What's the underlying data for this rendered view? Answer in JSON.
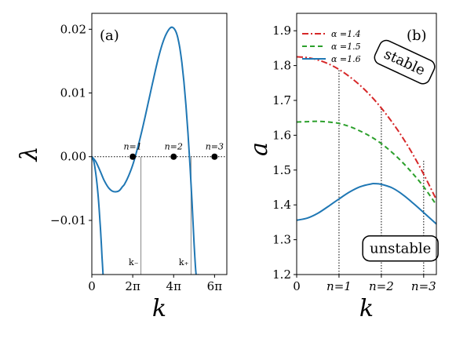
{
  "chart_data": [
    {
      "panel": "(a)",
      "type": "line",
      "xlabel": "k",
      "ylabel": "λ",
      "xlim": [
        0,
        6.6
      ],
      "ylim": [
        -0.0185,
        0.0225
      ],
      "x_tick_labels": [
        "0",
        "2π",
        "4π",
        "6π"
      ],
      "x_ticks": [
        0,
        2,
        4,
        6
      ],
      "y_tick_labels": [
        "−0.01",
        "0.00",
        "0.01",
        "0.02"
      ],
      "y_ticks": [
        -0.01,
        0.0,
        0.01,
        0.02
      ],
      "x_unit": "π",
      "grid": false,
      "color": "#1f77b4",
      "series": [
        {
          "x": [
            0,
            0.2,
            0.4,
            0.6,
            0.8,
            1.0,
            1.2,
            1.35,
            1.5,
            1.6,
            1.8,
            2.0,
            2.2,
            2.4,
            2.6,
            2.8,
            3.0,
            3.2,
            3.4,
            3.6,
            3.8,
            3.95,
            4.1,
            4.2,
            4.3,
            4.4,
            4.5,
            4.6,
            4.7,
            4.8,
            4.9,
            5.0,
            5.1,
            5.2
          ],
          "y": [
            0.0,
            -0.0008,
            -0.0022,
            -0.0037,
            -0.0048,
            -0.0054,
            -0.0055,
            -0.0053,
            -0.0047,
            -0.0043,
            -0.003,
            -0.0013,
            0.0009,
            0.0034,
            0.0062,
            0.0091,
            0.012,
            0.0148,
            0.0172,
            0.019,
            0.0201,
            0.0203,
            0.0197,
            0.0187,
            0.0171,
            0.0148,
            0.0118,
            0.0081,
            0.0037,
            -0.0014,
            -0.0072,
            -0.0137,
            -0.0185,
            -0.0185
          ]
        },
        {
          "x": [
            0,
            0.1,
            0.2,
            0.3,
            0.4,
            0.45,
            0.5,
            0.55
          ],
          "y": [
            0.0,
            -0.0008,
            -0.0028,
            -0.0058,
            -0.0102,
            -0.0128,
            -0.0158,
            -0.0185
          ]
        }
      ],
      "reference_lines": [
        {
          "type": "horizontal",
          "y": 0.0,
          "style": "dotted"
        },
        {
          "type": "vertical",
          "x": 2.4,
          "label": "k₋",
          "style": "solid-gray"
        },
        {
          "type": "vertical",
          "x": 4.85,
          "label": "k₊",
          "style": "solid-gray"
        }
      ],
      "points": [
        {
          "x": 2,
          "y": 0.0,
          "label": "n=1"
        },
        {
          "x": 4,
          "y": 0.0,
          "label": "n=2"
        },
        {
          "x": 6,
          "y": 0.0,
          "label": "n=3"
        }
      ]
    },
    {
      "panel": "(b)",
      "type": "line",
      "xlabel": "k",
      "ylabel": "a",
      "xlim": [
        0,
        3.3
      ],
      "ylim": [
        1.2,
        1.95
      ],
      "x_tick_labels": [
        "0",
        "n=1",
        "n=2",
        "n=3"
      ],
      "x_ticks": [
        0,
        1,
        2,
        3
      ],
      "y_tick_labels": [
        "1.2",
        "1.3",
        "1.4",
        "1.5",
        "1.6",
        "1.7",
        "1.8",
        "1.9"
      ],
      "y_ticks": [
        1.2,
        1.3,
        1.4,
        1.5,
        1.6,
        1.7,
        1.8,
        1.9
      ],
      "grid": false,
      "legend": "top-left",
      "series": [
        {
          "name": "α =1.4",
          "color": "#d62728",
          "style": "dashdot",
          "x": [
            0,
            0.25,
            0.5,
            0.75,
            1.0,
            1.25,
            1.5,
            1.75,
            2.0,
            2.25,
            2.5,
            2.75,
            3.0,
            3.3
          ],
          "y": [
            1.825,
            1.823,
            1.816,
            1.805,
            1.789,
            1.768,
            1.743,
            1.713,
            1.678,
            1.638,
            1.594,
            1.544,
            1.488,
            1.415
          ]
        },
        {
          "name": "α =1.5",
          "color": "#2ca02c",
          "style": "dashed",
          "x": [
            0,
            0.25,
            0.5,
            0.75,
            1.0,
            1.25,
            1.5,
            1.75,
            2.0,
            2.25,
            2.5,
            2.75,
            3.0,
            3.3
          ],
          "y": [
            1.638,
            1.639,
            1.64,
            1.638,
            1.634,
            1.625,
            1.612,
            1.596,
            1.576,
            1.551,
            1.522,
            1.489,
            1.452,
            1.4
          ]
        },
        {
          "name": "α =1.6",
          "color": "#1f77b4",
          "style": "solid",
          "x": [
            0,
            0.25,
            0.5,
            0.75,
            1.0,
            1.25,
            1.5,
            1.75,
            1.85,
            2.0,
            2.25,
            2.5,
            2.75,
            3.0,
            3.3
          ],
          "y": [
            1.356,
            1.362,
            1.376,
            1.396,
            1.417,
            1.437,
            1.452,
            1.46,
            1.461,
            1.459,
            1.449,
            1.43,
            1.405,
            1.378,
            1.345
          ]
        }
      ],
      "vertical_markers": [
        {
          "x": 1,
          "from": 1.2,
          "to": 1.789
        },
        {
          "x": 2,
          "from": 1.2,
          "to": 1.678
        },
        {
          "x": 3,
          "from": 1.2,
          "to": 1.53
        }
      ],
      "annotations": [
        {
          "text": "stable",
          "x": 2.55,
          "y": 1.81,
          "rotation": 25
        },
        {
          "text": "unstable",
          "x": 2.45,
          "y": 1.275,
          "rotation": 0
        }
      ]
    }
  ],
  "panel_labels": {
    "a": "(a)",
    "b": "(b)"
  },
  "styles": {
    "axis_color": "#000000",
    "guide_color": "#888888"
  }
}
